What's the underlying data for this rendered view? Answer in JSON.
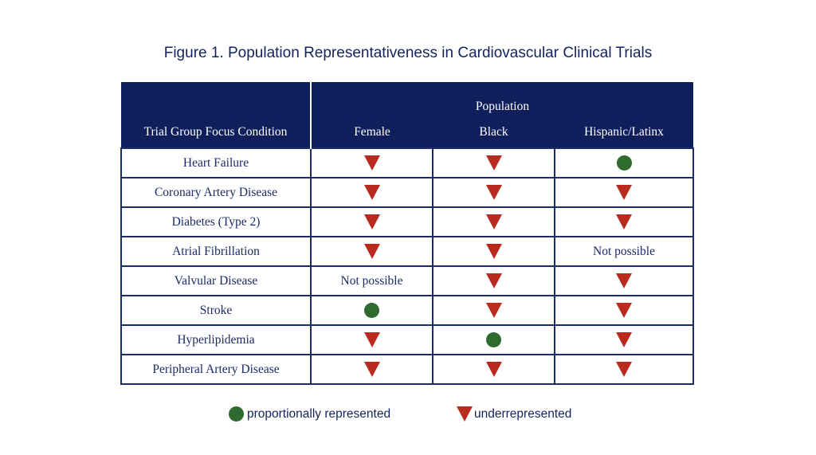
{
  "title": "Figure 1. Population Representativeness in Cardiovascular Clinical Trials",
  "header": {
    "group_label": "Population",
    "first_col": "Trial Group Focus Condition",
    "columns": [
      "Female",
      "Black",
      "Hispanic/Latinx"
    ]
  },
  "rows": [
    {
      "condition": "Heart Failure",
      "cells": [
        "under",
        "under",
        "prop"
      ]
    },
    {
      "condition": "Coronary Artery Disease",
      "cells": [
        "under",
        "under",
        "under"
      ]
    },
    {
      "condition": "Diabetes (Type 2)",
      "cells": [
        "under",
        "under",
        "under"
      ]
    },
    {
      "condition": "Atrial Fibrillation",
      "cells": [
        "under",
        "under",
        "Not possible"
      ]
    },
    {
      "condition": "Valvular Disease",
      "cells": [
        "Not possible",
        "under",
        "under"
      ]
    },
    {
      "condition": "Stroke",
      "cells": [
        "prop",
        "under",
        "under"
      ]
    },
    {
      "condition": "Hyperlipidemia",
      "cells": [
        "under",
        "prop",
        "under"
      ]
    },
    {
      "condition": "Peripheral Artery Disease",
      "cells": [
        "under",
        "under",
        "under"
      ]
    }
  ],
  "legend": {
    "proportional": "proportionally represented",
    "under": "underrepresented"
  },
  "colors": {
    "header_bg": "#0e1f5c",
    "triangle": "#b92a1f",
    "circle": "#2f6b2e"
  },
  "icons": {
    "under": "red-down-triangle-icon",
    "prop": "green-circle-icon"
  }
}
